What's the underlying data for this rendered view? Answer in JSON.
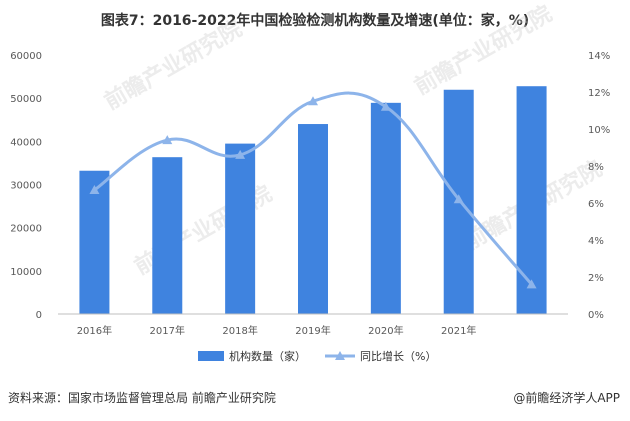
{
  "title": "图表7：2016-2022年中国检验检测机构数量及增速(单位：家，%)",
  "watermark": "前瞻产业研究院",
  "source": "资料来源：国家市场监督管理总局 前瞻产业研究院",
  "brand": "@前瞻经济学人APP",
  "colors": {
    "bar": "#3f83df",
    "line": "#8db4ea"
  },
  "chart_data": {
    "type": "bar",
    "categories": [
      "2016年",
      "2017年",
      "2018年",
      "2019年",
      "2020年",
      "2021年",
      ""
    ],
    "series": [
      {
        "name": "机构数量（家）",
        "type": "bar",
        "axis": "left",
        "values": [
          33189,
          36327,
          39472,
          44007,
          48919,
          51949,
          52769
        ]
      },
      {
        "name": "同比增长（%）",
        "type": "line",
        "axis": "right",
        "values": [
          6.7,
          9.4,
          8.6,
          11.5,
          11.2,
          6.2,
          1.6
        ]
      }
    ],
    "ylim_left": [
      0,
      60000
    ],
    "ylim_right": [
      0,
      14
    ],
    "yticks_left": [
      "0",
      "10000",
      "20000",
      "30000",
      "40000",
      "50000",
      "60000"
    ],
    "yticks_right": [
      "0%",
      "2%",
      "4%",
      "6%",
      "8%",
      "10%",
      "12%",
      "14%"
    ],
    "legend": "bottom",
    "grid": false
  }
}
